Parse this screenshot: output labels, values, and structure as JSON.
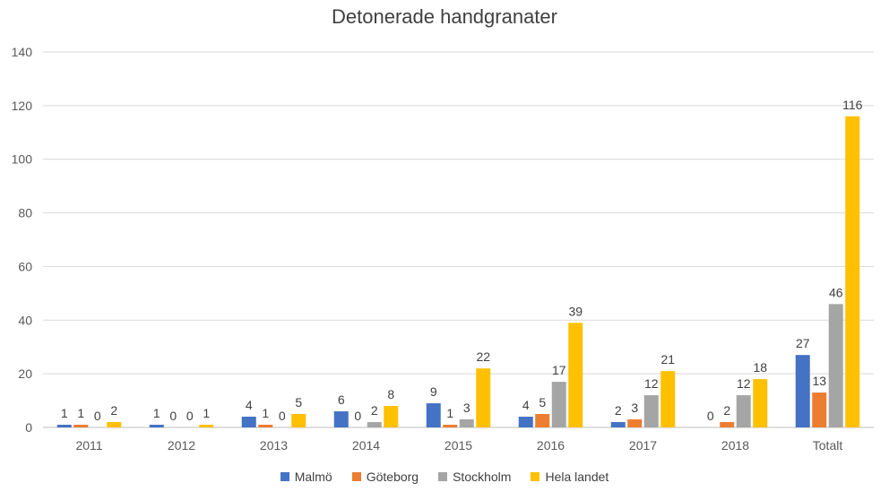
{
  "chart_data": {
    "type": "bar",
    "title": "Detonerade handgranater",
    "categories": [
      "2011",
      "2012",
      "2013",
      "2014",
      "2015",
      "2016",
      "2017",
      "2018",
      "Totalt"
    ],
    "series": [
      {
        "name": "Malmö",
        "color": "#4472C4",
        "values": [
          1,
          1,
          4,
          6,
          9,
          4,
          2,
          0,
          27
        ]
      },
      {
        "name": "Göteborg",
        "color": "#ED7D31",
        "values": [
          1,
          0,
          1,
          0,
          1,
          5,
          3,
          2,
          13
        ]
      },
      {
        "name": "Stockholm",
        "color": "#A5A5A5",
        "values": [
          0,
          0,
          0,
          2,
          3,
          17,
          12,
          12,
          46
        ]
      },
      {
        "name": "Hela landet",
        "color": "#FFC000",
        "values": [
          2,
          1,
          5,
          8,
          22,
          39,
          21,
          18,
          116
        ]
      }
    ],
    "ylim": [
      0,
      140
    ],
    "yticks": [
      0,
      20,
      40,
      60,
      80,
      100,
      120,
      140
    ],
    "grid": true,
    "legend_position": "bottom"
  }
}
